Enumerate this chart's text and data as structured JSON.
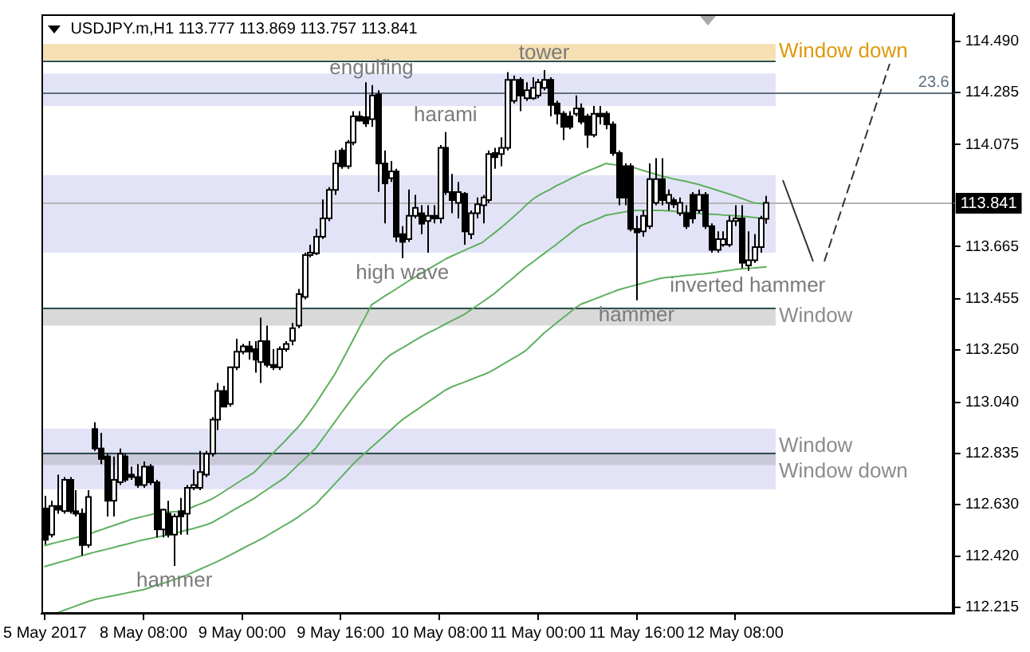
{
  "chart_data": {
    "type": "candlestick",
    "title": "USDJPY.m,H1 113.777 113.869 113.757 113.841",
    "categories": [
      "5 May 2017",
      null,
      null,
      null,
      null,
      null,
      null,
      null,
      null,
      null,
      null,
      null,
      null,
      null,
      null,
      null,
      "8 May 08:00",
      null,
      null,
      null,
      null,
      null,
      null,
      null,
      null,
      null,
      null,
      null,
      null,
      null,
      null,
      null,
      "9 May 00:00",
      null,
      null,
      null,
      null,
      null,
      null,
      null,
      null,
      null,
      null,
      null,
      null,
      null,
      null,
      null,
      "9 May 16:00",
      null,
      null,
      null,
      null,
      null,
      null,
      null,
      null,
      null,
      null,
      null,
      null,
      null,
      null,
      null,
      "10 May 08:00",
      null,
      null,
      null,
      null,
      null,
      null,
      null,
      null,
      null,
      null,
      null,
      null,
      null,
      null,
      null,
      "11 May 00:00",
      null,
      null,
      null,
      null,
      null,
      null,
      null,
      null,
      null,
      null,
      null,
      null,
      null,
      null,
      null,
      "11 May 16:00",
      null,
      null,
      null,
      null,
      null,
      null,
      null,
      null,
      null,
      null,
      null,
      null,
      null,
      null,
      null,
      "12 May 08:00",
      null,
      null,
      null,
      null,
      null,
      null,
      null,
      null,
      null,
      null,
      null,
      null,
      null,
      null,
      null,
      null,
      null,
      null,
      null,
      null,
      null,
      null,
      null,
      null,
      null,
      null,
      null,
      null,
      null,
      null,
      null,
      null,
      null,
      null,
      null
    ],
    "ohlc": [
      [
        112.613,
        112.663,
        112.468,
        112.487
      ],
      [
        112.508,
        112.644,
        112.497,
        112.623
      ],
      [
        112.623,
        112.749,
        112.592,
        112.608
      ],
      [
        112.602,
        112.739,
        112.592,
        112.728
      ],
      [
        112.728,
        112.739,
        112.592,
        112.602
      ],
      [
        112.602,
        112.686,
        112.581,
        112.592
      ],
      [
        112.592,
        112.613,
        112.424,
        112.466
      ],
      [
        112.466,
        112.686,
        112.455,
        112.659
      ],
      [
        112.932,
        112.959,
        112.844,
        112.854
      ],
      [
        112.854,
        112.917,
        112.791,
        112.812
      ],
      [
        112.822,
        112.833,
        112.581,
        112.644
      ],
      [
        112.644,
        112.822,
        112.581,
        112.728
      ],
      [
        112.718,
        112.854,
        112.707,
        112.833
      ],
      [
        112.822,
        112.833,
        112.718,
        112.728
      ],
      [
        112.749,
        112.781,
        112.728,
        112.739
      ],
      [
        112.739,
        112.791,
        112.696,
        112.707
      ],
      [
        112.707,
        112.802,
        112.696,
        112.781
      ],
      [
        112.781,
        112.791,
        112.707,
        112.718
      ],
      [
        112.718,
        112.728,
        112.497,
        112.529
      ],
      [
        112.529,
        112.613,
        112.497,
        112.608
      ],
      [
        112.592,
        112.644,
        112.497,
        112.508
      ],
      [
        112.508,
        112.592,
        112.382,
        112.581
      ],
      [
        112.602,
        112.655,
        112.508,
        112.581
      ],
      [
        112.592,
        112.707,
        112.508,
        112.696
      ],
      [
        112.696,
        112.77,
        112.686,
        112.707
      ],
      [
        112.696,
        112.844,
        112.686,
        112.759
      ],
      [
        112.749,
        112.844,
        112.739,
        112.833
      ],
      [
        112.833,
        112.98,
        112.822,
        112.97
      ],
      [
        112.97,
        113.117,
        112.928,
        113.085
      ],
      [
        113.085,
        113.106,
        113.022,
        113.022
      ],
      [
        113.033,
        113.18,
        113.022,
        113.18
      ],
      [
        113.18,
        113.295,
        113.169,
        113.243
      ],
      [
        113.243,
        113.274,
        113.232,
        113.264
      ],
      [
        113.264,
        113.285,
        113.211,
        113.243
      ],
      [
        113.253,
        113.285,
        113.159,
        113.211
      ],
      [
        113.201,
        113.38,
        113.117,
        113.285
      ],
      [
        113.285,
        113.348,
        113.18,
        113.19
      ],
      [
        113.19,
        113.253,
        113.169,
        113.18
      ],
      [
        113.18,
        113.264,
        113.169,
        113.253
      ],
      [
        113.253,
        113.285,
        113.243,
        113.274
      ],
      [
        113.287,
        113.358,
        113.268,
        113.337
      ],
      [
        113.348,
        113.495,
        113.337,
        113.474
      ],
      [
        113.463,
        113.641,
        113.453,
        113.631
      ],
      [
        113.631,
        113.673,
        113.621,
        113.641
      ],
      [
        113.638,
        113.736,
        113.631,
        113.705
      ],
      [
        113.705,
        113.854,
        113.696,
        113.778
      ],
      [
        113.778,
        113.904,
        113.767,
        113.893
      ],
      [
        113.893,
        114.051,
        113.873,
        113.999
      ],
      [
        114.051,
        114.062,
        113.978,
        113.988
      ],
      [
        113.988,
        114.093,
        113.978,
        114.083
      ],
      [
        114.083,
        114.209,
        114.072,
        114.188
      ],
      [
        114.188,
        114.209,
        114.167,
        114.171
      ],
      [
        114.185,
        114.325,
        114.146,
        114.16
      ],
      [
        114.177,
        114.314,
        114.146,
        114.272
      ],
      [
        114.276,
        114.293,
        113.885,
        113.999
      ],
      [
        113.999,
        114.051,
        113.758,
        113.919
      ],
      [
        113.94,
        114.009,
        113.925,
        113.967
      ],
      [
        113.967,
        113.978,
        113.684,
        113.705
      ],
      [
        113.715,
        113.747,
        113.618,
        113.684
      ],
      [
        113.695,
        113.894,
        113.684,
        113.789
      ],
      [
        113.789,
        113.873,
        113.778,
        113.821
      ],
      [
        113.799,
        113.831,
        113.715,
        113.757
      ],
      [
        113.768,
        113.831,
        113.641,
        113.789
      ],
      [
        113.789,
        113.831,
        113.758,
        113.778
      ],
      [
        113.778,
        114.073,
        113.758,
        114.062
      ],
      [
        114.062,
        114.125,
        113.873,
        113.884
      ],
      [
        113.884,
        113.957,
        113.799,
        113.852
      ],
      [
        113.841,
        113.925,
        113.778,
        113.884
      ],
      [
        113.877,
        113.884,
        113.673,
        113.726
      ],
      [
        113.715,
        113.81,
        113.695,
        113.799
      ],
      [
        113.799,
        113.862,
        113.778,
        113.835
      ],
      [
        113.831,
        113.873,
        113.758,
        113.862
      ],
      [
        113.852,
        114.051,
        113.841,
        114.037
      ],
      [
        114.041,
        114.062,
        113.978,
        114.024
      ],
      [
        114.037,
        114.104,
        113.988,
        114.062
      ],
      [
        114.062,
        114.366,
        114.051,
        114.335
      ],
      [
        114.251,
        114.352,
        114.24,
        114.335
      ],
      [
        114.335,
        114.345,
        114.209,
        114.272
      ],
      [
        114.261,
        114.325,
        114.251,
        114.293
      ],
      [
        114.261,
        114.345,
        114.255,
        114.303
      ],
      [
        114.272,
        114.339,
        114.261,
        114.325
      ],
      [
        114.303,
        114.374,
        114.293,
        114.335
      ],
      [
        114.335,
        114.345,
        114.188,
        114.234
      ],
      [
        114.24,
        114.251,
        114.156,
        114.199
      ],
      [
        114.199,
        114.209,
        114.093,
        114.146
      ],
      [
        114.188,
        114.209,
        114.136,
        114.146
      ],
      [
        114.199,
        114.272,
        114.188,
        114.22
      ],
      [
        114.22,
        114.24,
        114.156,
        114.167
      ],
      [
        114.188,
        114.199,
        114.062,
        114.114
      ],
      [
        114.114,
        114.23,
        114.104,
        114.199
      ],
      [
        114.199,
        114.23,
        114.156,
        114.188
      ],
      [
        114.199,
        114.209,
        114.136,
        114.156
      ],
      [
        114.156,
        114.167,
        114.03,
        114.041
      ],
      [
        114.041,
        114.051,
        113.831,
        113.862
      ],
      [
        113.988,
        113.999,
        113.831,
        113.862
      ],
      [
        113.988,
        113.999,
        113.726,
        113.736
      ],
      [
        113.736,
        113.789,
        113.449,
        113.722
      ],
      [
        113.726,
        113.81,
        113.705,
        113.789
      ],
      [
        113.747,
        113.999,
        113.736,
        113.936
      ],
      [
        113.841,
        114.02,
        113.831,
        113.936
      ],
      [
        113.936,
        114.02,
        113.831,
        113.852
      ],
      [
        113.841,
        113.894,
        113.81,
        113.873
      ],
      [
        113.852,
        113.862,
        113.821,
        113.835
      ],
      [
        113.799,
        113.862,
        113.789,
        113.841
      ],
      [
        113.799,
        113.831,
        113.736,
        113.747
      ],
      [
        113.873,
        113.884,
        113.758,
        113.778
      ],
      [
        113.81,
        113.894,
        113.799,
        113.873
      ],
      [
        113.873,
        113.884,
        113.736,
        113.747
      ],
      [
        113.747,
        113.758,
        113.641,
        113.652
      ],
      [
        113.652,
        113.726,
        113.641,
        113.695
      ],
      [
        113.673,
        113.726,
        113.665,
        113.695
      ],
      [
        113.673,
        113.789,
        113.663,
        113.768
      ],
      [
        113.768,
        113.831,
        113.747,
        113.778
      ],
      [
        113.778,
        113.831,
        113.579,
        113.6
      ],
      [
        113.589,
        113.726,
        113.568,
        113.61
      ],
      [
        113.61,
        113.715,
        113.6,
        113.663
      ],
      [
        113.663,
        113.789,
        113.641,
        113.778
      ],
      [
        113.777,
        113.869,
        113.757,
        113.841
      ],
      null,
      null,
      null,
      null,
      null,
      null,
      null,
      null,
      null,
      null,
      null,
      null,
      null,
      null,
      null,
      null,
      null,
      null,
      null,
      null,
      null,
      null,
      null,
      null,
      null,
      null,
      null,
      null,
      null,
      null
    ],
    "series": [
      {
        "type": "line",
        "color": "#5fb05f",
        "values": [
          112.464,
          112.471,
          112.477,
          112.483,
          112.489,
          112.496,
          112.502,
          112.509,
          112.518,
          112.526,
          112.535,
          112.543,
          112.552,
          112.56,
          112.569,
          112.575,
          112.581,
          112.587,
          112.593,
          112.597,
          112.598,
          112.6,
          112.601,
          112.608,
          112.619,
          112.629,
          112.639,
          112.65,
          112.664,
          112.68,
          112.696,
          112.712,
          112.728,
          112.743,
          112.759,
          112.784,
          112.81,
          112.835,
          112.86,
          112.885,
          112.912,
          112.937,
          112.968,
          113.002,
          113.036,
          113.075,
          113.113,
          113.151,
          113.196,
          113.243,
          113.29,
          113.338,
          113.384,
          113.431,
          113.447,
          113.464,
          113.479,
          113.495,
          113.511,
          113.527,
          113.542,
          113.557,
          113.571,
          113.586,
          113.6,
          113.615,
          113.627,
          113.638,
          113.649,
          113.66,
          113.671,
          113.682,
          113.702,
          113.721,
          113.741,
          113.762,
          113.784,
          113.806,
          113.83,
          113.852,
          113.869,
          113.883,
          113.895,
          113.91,
          113.921,
          113.934,
          113.946,
          113.958,
          113.968,
          113.978,
          113.988,
          113.999,
          113.995,
          113.992,
          null,
          113.986,
          113.979,
          113.971,
          113.964,
          113.956,
          113.949,
          113.943,
          113.937,
          113.932,
          113.927,
          113.921,
          113.915,
          113.907,
          113.9,
          113.892,
          113.884,
          113.876,
          113.868,
          113.859,
          113.85,
          113.841,
          113.838,
          113.835,
          null,
          null,
          null,
          null,
          null,
          null,
          null,
          null,
          null,
          null,
          null,
          null,
          null,
          null,
          null,
          null,
          null,
          null,
          null,
          null,
          null,
          null,
          null,
          null,
          null,
          null,
          null,
          null,
          null,
          null
        ]
      },
      {
        "type": "line",
        "color": "#5fb05f",
        "values": [
          112.38,
          112.387,
          112.394,
          112.401,
          112.408,
          112.416,
          112.423,
          112.43,
          112.437,
          112.443,
          112.449,
          112.455,
          112.462,
          112.468,
          112.474,
          112.481,
          112.487,
          112.492,
          112.497,
          112.502,
          112.507,
          112.513,
          112.519,
          112.526,
          112.532,
          112.539,
          112.546,
          112.555,
          112.569,
          112.583,
          112.598,
          112.612,
          112.626,
          112.64,
          112.654,
          112.672,
          112.688,
          112.705,
          112.721,
          112.738,
          112.762,
          112.786,
          112.809,
          112.832,
          112.857,
          112.891,
          112.925,
          112.959,
          112.993,
          113.027,
          113.06,
          113.092,
          113.12,
          113.149,
          113.178,
          113.207,
          113.229,
          113.244,
          113.258,
          113.273,
          113.288,
          113.302,
          113.316,
          113.328,
          113.341,
          113.354,
          113.367,
          113.379,
          113.392,
          113.409,
          113.426,
          113.443,
          113.46,
          113.478,
          113.499,
          113.52,
          113.54,
          113.561,
          113.582,
          113.6,
          113.619,
          113.637,
          113.656,
          113.674,
          113.694,
          113.713,
          113.733,
          113.75,
          113.76,
          113.77,
          113.78,
          113.791,
          113.795,
          113.8,
          113.804,
          113.809,
          113.81,
          113.81,
          113.81,
          113.81,
          113.81,
          113.809,
          113.807,
          113.804,
          113.803,
          113.8,
          113.798,
          113.796,
          113.795,
          113.794,
          113.792,
          113.791,
          113.789,
          113.787,
          113.785,
          113.782,
          113.78,
          113.778,
          null,
          null,
          null,
          null,
          null,
          null,
          null,
          null,
          null,
          null,
          null,
          null,
          null,
          null,
          null,
          null,
          null,
          null,
          null,
          null,
          null,
          null,
          null,
          null,
          null,
          null,
          null,
          null,
          null,
          null
        ]
      },
      {
        "type": "line",
        "color": "#5fb05f",
        "values": [
          null,
          null,
          112.193,
          112.203,
          112.212,
          112.221,
          112.23,
          112.239,
          112.247,
          112.252,
          112.257,
          112.262,
          112.267,
          112.272,
          112.277,
          112.282,
          112.287,
          112.295,
          112.304,
          112.311,
          112.319,
          112.328,
          112.336,
          112.345,
          112.356,
          112.367,
          112.378,
          112.389,
          112.4,
          112.412,
          112.425,
          112.438,
          112.451,
          112.464,
          112.476,
          112.489,
          112.503,
          112.518,
          112.532,
          112.547,
          112.561,
          112.577,
          112.595,
          112.612,
          112.631,
          112.658,
          112.684,
          112.711,
          112.737,
          112.764,
          112.791,
          112.815,
          112.837,
          112.859,
          112.881,
          112.903,
          112.926,
          112.948,
          112.97,
          112.987,
          113.004,
          113.021,
          113.038,
          113.055,
          113.072,
          113.089,
          113.101,
          113.111,
          113.12,
          113.13,
          113.14,
          113.149,
          113.159,
          113.173,
          113.188,
          113.202,
          113.217,
          113.231,
          113.247,
          113.271,
          113.294,
          113.318,
          113.338,
          113.358,
          113.378,
          113.397,
          113.418,
          113.434,
          113.443,
          113.453,
          113.462,
          113.472,
          113.481,
          113.491,
          113.498,
          113.505,
          113.511,
          113.518,
          113.525,
          113.532,
          113.538,
          113.541,
          113.544,
          113.546,
          113.549,
          113.551,
          113.554,
          113.556,
          113.559,
          113.562,
          113.566,
          113.569,
          113.573,
          113.576,
          113.578,
          113.579,
          113.581,
          113.583,
          null,
          null,
          null,
          null,
          null,
          null,
          null,
          null,
          null,
          null,
          null,
          null,
          null,
          null,
          null,
          null,
          null,
          null,
          null,
          null,
          null,
          null,
          null,
          null,
          null,
          null,
          null,
          null,
          null,
          null
        ]
      }
    ],
    "ylim": [
      112.19,
      114.6
    ],
    "yticks": [
      {
        "value": 114.49,
        "label": "114.490"
      },
      {
        "value": 114.285,
        "label": "114.285"
      },
      {
        "value": 114.075,
        "label": "114.075"
      },
      {
        "value": 113.665,
        "label": "113.665"
      },
      {
        "value": 113.455,
        "label": "113.455"
      },
      {
        "value": 113.25,
        "label": "113.250"
      },
      {
        "value": 113.04,
        "label": "113.040"
      },
      {
        "value": 112.835,
        "label": "112.835"
      },
      {
        "value": 112.63,
        "label": "112.630"
      },
      {
        "value": 112.42,
        "label": "112.420"
      },
      {
        "value": 112.215,
        "label": "112.215"
      }
    ],
    "bands": [
      {
        "axis": "y",
        "from": 114.414,
        "to": 114.479,
        "label": "Window down",
        "color": "#f5dfb3"
      },
      {
        "axis": "y",
        "from": 114.23,
        "to": 114.36,
        "color": "#e3e3f8"
      },
      {
        "axis": "y",
        "from": 113.641,
        "to": 113.952,
        "color": "#e3e3f8"
      },
      {
        "axis": "y",
        "from": 113.348,
        "to": 113.421,
        "label": "Window",
        "color": "#d9d9d9"
      },
      {
        "axis": "y",
        "from": 112.69,
        "to": 112.934,
        "label": "Window down",
        "color": "#e3e3f8"
      },
      {
        "axis": "y",
        "from": 112.787,
        "to": 112.839,
        "label": "Window",
        "color": "#c9c9d9"
      }
    ],
    "ref_lines": [
      {
        "axis": "y",
        "value": 114.285,
        "color": "#5f6f80"
      },
      {
        "axis": "y",
        "value": 113.841,
        "label": "113.841",
        "color": "#b4b4b4"
      },
      {
        "axis": "y",
        "value": 114.414,
        "color": "#2f4f4f"
      },
      {
        "axis": "y",
        "value": 113.421,
        "color": "#2f4f4f"
      },
      {
        "axis": "y",
        "value": 112.839,
        "color": "#2f4f4f"
      }
    ],
    "annotations": [
      {
        "text": "engulfing",
        "y": 114.314
      },
      {
        "text": "harami",
        "y": 114.125
      },
      {
        "text": "high wave",
        "y": 113.618
      },
      {
        "text": "hammer",
        "y": 112.382
      },
      {
        "text": "hammer",
        "y": 113.449
      },
      {
        "text": "inverted hammer",
        "y": 113.568
      },
      {
        "text": "tower",
        "y": 114.374
      },
      {
        "text": "23.6",
        "y": 114.285
      }
    ]
  }
}
